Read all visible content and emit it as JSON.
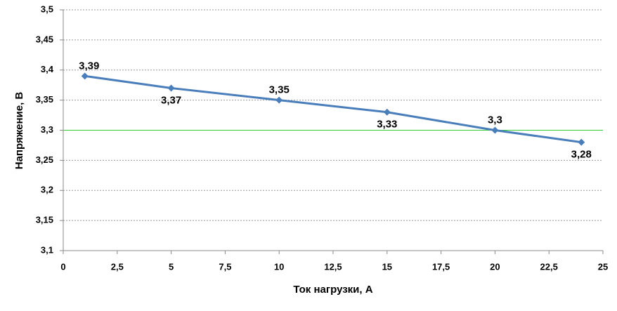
{
  "chart_data": {
    "type": "line",
    "x_label": "Ток нагрузки, А",
    "y_label": "Напряжение, В",
    "x": [
      1,
      5,
      10,
      15,
      20,
      24
    ],
    "series": [
      {
        "color": "#4a7ebb",
        "values": [
          3.39,
          3.37,
          3.35,
          3.33,
          3.3,
          3.28
        ],
        "value_labels": [
          "3,39",
          "3,37",
          "3,35",
          "3,33",
          "3,3",
          "3,28"
        ]
      }
    ],
    "xlim": [
      0,
      25
    ],
    "xticks": [
      0,
      {
        "value": 2.5,
        "label": "2,5"
      },
      5,
      {
        "value": 7.5,
        "label": "7,5"
      },
      10,
      {
        "value": 12.5,
        "label": "12,5"
      },
      15,
      {
        "value": 17.5,
        "label": "17,5"
      },
      20,
      {
        "value": 22.5,
        "label": "22,5"
      },
      25
    ],
    "ylim": [
      3.1,
      3.5
    ],
    "yticks": [
      {
        "value": 3.1,
        "label": "3,1"
      },
      {
        "value": 3.15,
        "label": "3,15"
      },
      {
        "value": 3.2,
        "label": "3,2"
      },
      {
        "value": 3.25,
        "label": "3,25"
      },
      {
        "value": 3.3,
        "label": "3,3"
      },
      {
        "value": 3.35,
        "label": "3,35"
      },
      {
        "value": 3.4,
        "label": "3,4"
      },
      {
        "value": 3.45,
        "label": "3,45"
      },
      {
        "value": 3.5,
        "label": "3,5"
      }
    ],
    "grid": true,
    "reference_lines": [
      {
        "value": 3.3,
        "color": "#33cc33"
      }
    ]
  }
}
